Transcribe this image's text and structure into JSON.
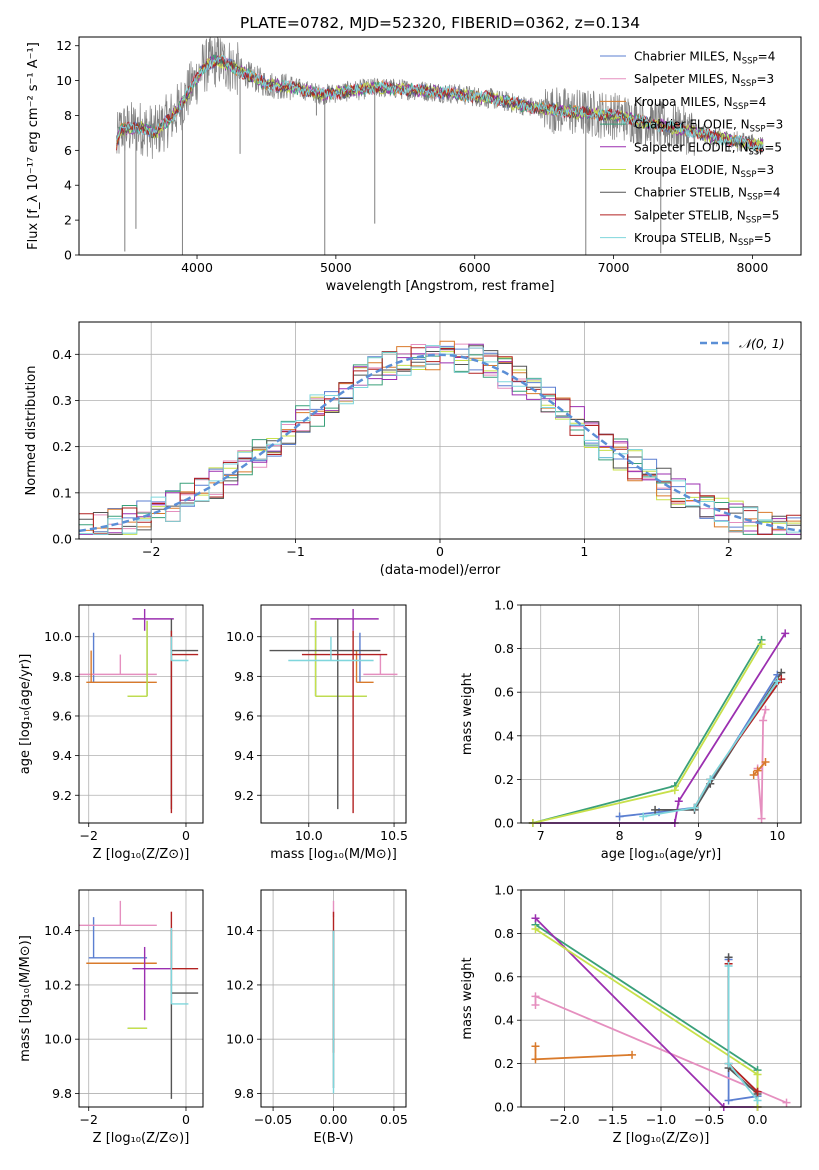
{
  "figure_title": "PLATE=0782, MJD=52320, FIBERID=0362, z=0.134",
  "colors": {
    "Chabrier MILES": "#5b7fd1",
    "Salpeter MILES": "#e58fbf",
    "Kroupa MILES": "#d97a2b",
    "Chabrier ELODIE": "#3aa07a",
    "Salpeter ELODIE": "#9b2fb0",
    "Kroupa ELODIE": "#c8e04a",
    "Chabrier STELIB": "#555555",
    "Salpeter STELIB": "#b22222",
    "Kroupa STELIB": "#7fd6dc",
    "normal_curve": "#5b8fd6",
    "data": "#808080"
  },
  "chart_data": [
    {
      "id": "spectrum",
      "type": "line",
      "xlabel": "wavelength [Angstrom, rest frame]",
      "ylabel": "Flux [f_λ 10⁻¹⁷ erg cm⁻² s⁻¹ A⁻¹]",
      "xlim": [
        3150,
        8350
      ],
      "ylim": [
        0,
        12.5
      ],
      "xticks": [
        4000,
        5000,
        6000,
        7000,
        8000
      ],
      "yticks": [
        0,
        2,
        4,
        6,
        8,
        10,
        12
      ],
      "grid": false,
      "legend_position": "right",
      "legend": [
        {
          "name": "Chabrier MILES",
          "nssp": "4"
        },
        {
          "name": "Salpeter MILES",
          "nssp": "3"
        },
        {
          "name": "Kroupa MILES",
          "nssp": "4"
        },
        {
          "name": "Chabrier ELODIE",
          "nssp": "3"
        },
        {
          "name": "Salpeter ELODIE",
          "nssp": "5"
        },
        {
          "name": "Kroupa ELODIE",
          "nssp": "3"
        },
        {
          "name": "Chabrier STELIB",
          "nssp": "4"
        },
        {
          "name": "Salpeter STELIB",
          "nssp": "5"
        },
        {
          "name": "Kroupa STELIB",
          "nssp": "5"
        }
      ],
      "continuum": [
        [
          3400,
          5.8
        ],
        [
          3450,
          7.2
        ],
        [
          3600,
          7.3
        ],
        [
          3700,
          7.0
        ],
        [
          3850,
          8.2
        ],
        [
          3950,
          9.5
        ],
        [
          4050,
          10.8
        ],
        [
          4150,
          11.2
        ],
        [
          4300,
          10.6
        ],
        [
          4500,
          9.8
        ],
        [
          4700,
          9.6
        ],
        [
          4900,
          9.2
        ],
        [
          5100,
          9.4
        ],
        [
          5300,
          9.6
        ],
        [
          5500,
          9.5
        ],
        [
          5800,
          9.3
        ],
        [
          6100,
          9.0
        ],
        [
          6400,
          8.5
        ],
        [
          6700,
          8.2
        ],
        [
          7000,
          8.0
        ],
        [
          7300,
          7.5
        ],
        [
          7500,
          7.2
        ],
        [
          7700,
          6.8
        ],
        [
          7900,
          6.5
        ],
        [
          8050,
          6.3
        ]
      ],
      "absorption_spikes": [
        [
          3480,
          0.2
        ],
        [
          3560,
          1.5
        ],
        [
          3895,
          0.0
        ],
        [
          4310,
          5.8
        ],
        [
          4860,
          8.0
        ],
        [
          4920,
          0.0
        ],
        [
          5280,
          1.8
        ],
        [
          6800,
          0.0
        ],
        [
          7340,
          0.1
        ]
      ]
    },
    {
      "id": "residual_histogram",
      "type": "histogram",
      "xlabel": "(data-model)/error",
      "ylabel": "Normed distribution",
      "xlim": [
        -2.5,
        2.5
      ],
      "ylim": [
        0,
        0.47
      ],
      "xticks": [
        -2,
        -1,
        0,
        1,
        2
      ],
      "yticks": [
        0.0,
        0.1,
        0.2,
        0.3,
        0.4
      ],
      "grid": true,
      "legend_position": "top-right",
      "legend": [
        "𝒩(0, 1)"
      ],
      "bin_width": 0.1
    },
    {
      "id": "age_vs_Z",
      "type": "errorbar",
      "xlabel": "Z [log₁₀(Z/Z⊙)]",
      "ylabel": "age  [log₁₀(age/yr)]",
      "xlim": [
        -2.2,
        0.35
      ],
      "ylim": [
        9.06,
        10.16
      ],
      "xticks": [
        -2,
        0
      ],
      "yticks": [
        9.2,
        9.4,
        9.6,
        9.8,
        10.0
      ],
      "grid": true,
      "points": [
        {
          "series": "Chabrier MILES",
          "x": -1.9,
          "xerr": [
            0.1,
            1.1
          ],
          "y": 9.77,
          "yerr": [
            0.0,
            0.25
          ]
        },
        {
          "series": "Salpeter MILES",
          "x": -1.35,
          "xerr": [
            0.85,
            0.75
          ],
          "y": 9.81,
          "yerr": [
            0.0,
            0.1
          ]
        },
        {
          "series": "Kroupa MILES",
          "x": -1.95,
          "xerr": [
            0.1,
            1.35
          ],
          "y": 9.77,
          "yerr": [
            0.0,
            0.16
          ]
        },
        {
          "series": "Chabrier ELODIE",
          "x": -0.8,
          "xerr": [
            0.4,
            0.0
          ],
          "y": 9.7,
          "yerr": [
            0.0,
            0.38
          ]
        },
        {
          "series": "Salpeter ELODIE",
          "x": -0.85,
          "xerr": [
            0.25,
            0.6
          ],
          "y": 10.09,
          "yerr": [
            0.06,
            0.05
          ]
        },
        {
          "series": "Kroupa ELODIE",
          "x": -0.8,
          "xerr": [
            0.4,
            0.0
          ],
          "y": 9.7,
          "yerr": [
            0.0,
            0.38
          ]
        },
        {
          "series": "Chabrier STELIB",
          "x": -0.3,
          "xerr": [
            0.0,
            0.55
          ],
          "y": 9.93,
          "yerr": [
            0.8,
            0.16
          ]
        },
        {
          "series": "Salpeter STELIB",
          "x": -0.3,
          "xerr": [
            0.0,
            0.55
          ],
          "y": 9.91,
          "yerr": [
            0.8,
            0.12
          ]
        },
        {
          "series": "Kroupa STELIB",
          "x": -0.3,
          "xerr": [
            0.0,
            0.35
          ],
          "y": 9.88,
          "yerr": [
            0.0,
            0.12
          ]
        }
      ]
    },
    {
      "id": "age_vs_mass",
      "type": "errorbar",
      "xlabel": "mass [log₁₀(M/M⊙)]",
      "ylabel": "",
      "xlim": [
        9.72,
        10.57
      ],
      "ylim": [
        9.06,
        10.16
      ],
      "xticks": [
        10.0,
        10.5
      ],
      "yticks": [
        9.2,
        9.4,
        9.6,
        9.8,
        10.0
      ],
      "grid": true,
      "points": [
        {
          "series": "Chabrier MILES",
          "x": 10.3,
          "xerr": [
            0.0,
            0.0
          ],
          "y": 9.77,
          "yerr": [
            0.0,
            0.25
          ]
        },
        {
          "series": "Salpeter MILES",
          "x": 10.42,
          "xerr": [
            0.1,
            0.1
          ],
          "y": 9.81,
          "yerr": [
            0.0,
            0.1
          ]
        },
        {
          "series": "Kroupa MILES",
          "x": 10.28,
          "xerr": [
            0.0,
            0.1
          ],
          "y": 9.77,
          "yerr": [
            0.0,
            0.16
          ]
        },
        {
          "series": "Chabrier ELODIE",
          "x": 10.04,
          "xerr": [
            0.0,
            0.3
          ],
          "y": 9.7,
          "yerr": [
            0.0,
            0.38
          ]
        },
        {
          "series": "Salpeter ELODIE",
          "x": 10.26,
          "xerr": [
            0.25,
            0.15
          ],
          "y": 10.09,
          "yerr": [
            0.06,
            0.05
          ]
        },
        {
          "series": "Kroupa ELODIE",
          "x": 10.04,
          "xerr": [
            0.0,
            0.3
          ],
          "y": 9.7,
          "yerr": [
            0.0,
            0.38
          ]
        },
        {
          "series": "Chabrier STELIB",
          "x": 10.17,
          "xerr": [
            0.4,
            0.25
          ],
          "y": 9.93,
          "yerr": [
            0.8,
            0.16
          ]
        },
        {
          "series": "Salpeter STELIB",
          "x": 10.26,
          "xerr": [
            0.3,
            0.2
          ],
          "y": 9.91,
          "yerr": [
            0.8,
            0.12
          ]
        },
        {
          "series": "Kroupa STELIB",
          "x": 10.13,
          "xerr": [
            0.25,
            0.25
          ],
          "y": 9.88,
          "yerr": [
            0.0,
            0.12
          ]
        }
      ]
    },
    {
      "id": "massweight_vs_age",
      "type": "line",
      "xlabel": "age  [log₁₀(age/yr)]",
      "ylabel": "mass weight",
      "xlim": [
        6.75,
        10.3
      ],
      "ylim": [
        0,
        1.0
      ],
      "xticks": [
        7,
        8,
        9,
        10
      ],
      "yticks": [
        0.0,
        0.2,
        0.4,
        0.6,
        0.8,
        1.0
      ],
      "grid": true,
      "series": [
        {
          "name": "Chabrier MILES",
          "points": [
            [
              8.0,
              0.03
            ],
            [
              8.5,
              0.05
            ],
            [
              8.95,
              0.07
            ],
            [
              10.0,
              0.68
            ]
          ]
        },
        {
          "name": "Salpeter MILES",
          "points": [
            [
              9.75,
              0.25
            ],
            [
              9.8,
              0.02
            ],
            [
              9.82,
              0.47
            ],
            [
              9.85,
              0.52
            ]
          ]
        },
        {
          "name": "Kroupa MILES",
          "points": [
            [
              9.7,
              0.22
            ],
            [
              9.75,
              0.24
            ],
            [
              9.85,
              0.28
            ]
          ]
        },
        {
          "name": "Chabrier ELODIE",
          "points": [
            [
              6.9,
              0.0
            ],
            [
              8.7,
              0.17
            ],
            [
              9.8,
              0.84
            ]
          ]
        },
        {
          "name": "Salpeter ELODIE",
          "points": [
            [
              6.9,
              0.0
            ],
            [
              8.7,
              0.0
            ],
            [
              8.75,
              0.1
            ],
            [
              10.1,
              0.87
            ]
          ]
        },
        {
          "name": "Kroupa ELODIE",
          "points": [
            [
              6.9,
              0.0
            ],
            [
              8.7,
              0.15
            ],
            [
              9.8,
              0.82
            ]
          ]
        },
        {
          "name": "Chabrier STELIB",
          "points": [
            [
              8.45,
              0.06
            ],
            [
              8.95,
              0.06
            ],
            [
              9.15,
              0.18
            ],
            [
              10.05,
              0.69
            ]
          ]
        },
        {
          "name": "Salpeter STELIB",
          "points": [
            [
              8.95,
              0.07
            ],
            [
              9.15,
              0.2
            ],
            [
              10.05,
              0.66
            ]
          ]
        },
        {
          "name": "Kroupa STELIB",
          "points": [
            [
              8.3,
              0.03
            ],
            [
              8.95,
              0.07
            ],
            [
              9.15,
              0.2
            ],
            [
              10.0,
              0.65
            ]
          ]
        }
      ]
    },
    {
      "id": "mass_vs_Z",
      "type": "errorbar",
      "xlabel": "Z [log₁₀(Z/Z⊙)]",
      "ylabel": "mass [log₁₀(M/M⊙)]",
      "xlim": [
        -2.2,
        0.35
      ],
      "ylim": [
        9.75,
        10.55
      ],
      "xticks": [
        -2,
        0
      ],
      "yticks": [
        9.8,
        10.0,
        10.2,
        10.4
      ],
      "grid": true,
      "points": [
        {
          "series": "Chabrier MILES",
          "x": -1.9,
          "xerr": [
            0.1,
            1.1
          ],
          "y": 10.3,
          "yerr": [
            0.0,
            0.15
          ]
        },
        {
          "series": "Salpeter MILES",
          "x": -1.35,
          "xerr": [
            0.85,
            0.75
          ],
          "y": 10.42,
          "yerr": [
            0.0,
            0.09
          ]
        },
        {
          "series": "Kroupa MILES",
          "x": -1.95,
          "xerr": [
            0.1,
            1.35
          ],
          "y": 10.28,
          "yerr": [
            0.0,
            0.0
          ]
        },
        {
          "series": "Chabrier ELODIE",
          "x": -0.8,
          "xerr": [
            0.4,
            0.0
          ],
          "y": 10.04,
          "yerr": [
            0.0,
            0.0
          ]
        },
        {
          "series": "Salpeter ELODIE",
          "x": -0.85,
          "xerr": [
            0.25,
            0.6
          ],
          "y": 10.26,
          "yerr": [
            0.19,
            0.08
          ]
        },
        {
          "series": "Kroupa ELODIE",
          "x": -0.8,
          "xerr": [
            0.4,
            0.0
          ],
          "y": 10.04,
          "yerr": [
            0.0,
            0.0
          ]
        },
        {
          "series": "Chabrier STELIB",
          "x": -0.3,
          "xerr": [
            0.0,
            0.55
          ],
          "y": 10.17,
          "yerr": [
            0.39,
            0.23
          ]
        },
        {
          "series": "Salpeter STELIB",
          "x": -0.3,
          "xerr": [
            0.0,
            0.55
          ],
          "y": 10.26,
          "yerr": [
            0.0,
            0.21
          ]
        },
        {
          "series": "Kroupa STELIB",
          "x": -0.3,
          "xerr": [
            0.0,
            0.35
          ],
          "y": 10.13,
          "yerr": [
            0.0,
            0.28
          ]
        }
      ]
    },
    {
      "id": "mass_vs_ebv",
      "type": "errorbar",
      "xlabel": "E(B-V)",
      "ylabel": "",
      "xlim": [
        -0.06,
        0.06
      ],
      "ylim": [
        9.75,
        10.55
      ],
      "xticks": [
        -0.05,
        0.0,
        0.05
      ],
      "yticks": [
        9.8,
        10.0,
        10.2,
        10.4
      ],
      "grid": true,
      "points": [
        {
          "series": "Salpeter MILES",
          "x": 0.0,
          "xerr": [
            0.0,
            0.0
          ],
          "y": 10.45,
          "yerr": [
            0.0,
            0.06
          ]
        },
        {
          "series": "Salpeter STELIB",
          "x": 0.0,
          "xerr": [
            0.0,
            0.0
          ],
          "y": 10.2,
          "yerr": [
            0.25,
            0.27
          ]
        },
        {
          "series": "Chabrier STELIB",
          "x": 0.0,
          "xerr": [
            0.0,
            0.0
          ],
          "y": 10.0,
          "yerr": [
            0.18,
            0.4
          ]
        },
        {
          "series": "Kroupa STELIB",
          "x": 0.0,
          "xerr": [
            0.0,
            0.0
          ],
          "y": 10.1,
          "yerr": [
            0.3,
            0.3
          ]
        }
      ]
    },
    {
      "id": "massweight_vs_Z",
      "type": "line",
      "xlabel": "Z [log₁₀(Z/Z⊙)]",
      "ylabel": "mass weight",
      "xlim": [
        -2.45,
        0.45
      ],
      "ylim": [
        0,
        1.0
      ],
      "xticks": [
        -2.0,
        -1.5,
        -1.0,
        -0.5,
        0.0
      ],
      "yticks": [
        0.0,
        0.2,
        0.4,
        0.6,
        0.8,
        1.0
      ],
      "grid": true,
      "series": [
        {
          "name": "Chabrier MILES",
          "points": [
            [
              -0.3,
              0.68
            ],
            [
              -0.3,
              0.03
            ],
            [
              0.0,
              0.05
            ]
          ]
        },
        {
          "name": "Salpeter MILES",
          "points": [
            [
              -2.3,
              0.47
            ],
            [
              -2.3,
              0.51
            ],
            [
              0.3,
              0.02
            ]
          ]
        },
        {
          "name": "Kroupa MILES",
          "points": [
            [
              -2.3,
              0.28
            ],
            [
              -2.3,
              0.22
            ],
            [
              -1.3,
              0.24
            ]
          ]
        },
        {
          "name": "Chabrier ELODIE",
          "points": [
            [
              -2.3,
              0.84
            ],
            [
              0.0,
              0.17
            ],
            [
              0.0,
              0.0
            ]
          ]
        },
        {
          "name": "Salpeter ELODIE",
          "points": [
            [
              -2.3,
              0.87
            ],
            [
              -0.35,
              0.0
            ],
            [
              0.0,
              0.0
            ]
          ]
        },
        {
          "name": "Kroupa ELODIE",
          "points": [
            [
              -2.3,
              0.82
            ],
            [
              0.0,
              0.15
            ],
            [
              0.0,
              0.0
            ]
          ]
        },
        {
          "name": "Chabrier STELIB",
          "points": [
            [
              -0.3,
              0.69
            ],
            [
              -0.3,
              0.18
            ],
            [
              0.0,
              0.06
            ]
          ]
        },
        {
          "name": "Salpeter STELIB",
          "points": [
            [
              -0.3,
              0.66
            ],
            [
              -0.3,
              0.2
            ],
            [
              0.0,
              0.07
            ]
          ]
        },
        {
          "name": "Kroupa STELIB",
          "points": [
            [
              -0.3,
              0.65
            ],
            [
              -0.3,
              0.2
            ],
            [
              0.0,
              0.03
            ]
          ]
        }
      ]
    }
  ]
}
